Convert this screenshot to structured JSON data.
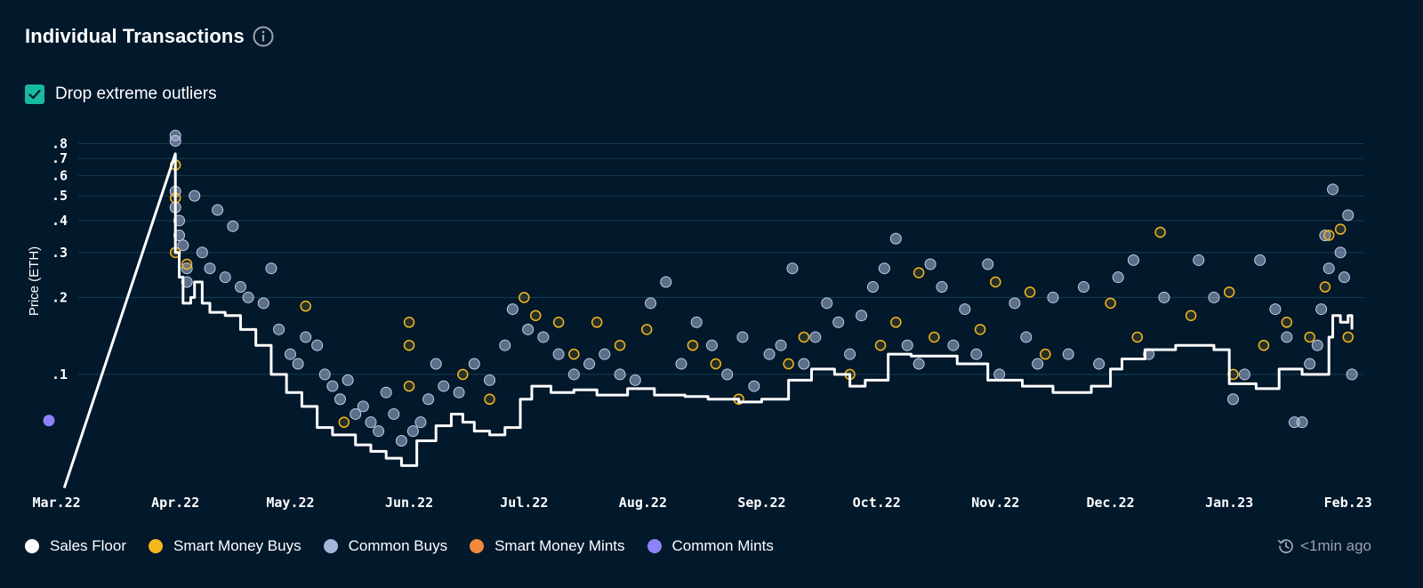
{
  "header": {
    "title": "Individual Transactions",
    "info_icon": "info-circle-icon"
  },
  "filter": {
    "label": "Drop extreme outliers",
    "checked": true
  },
  "status": {
    "refresh_icon": "refresh-clock-icon",
    "text": "<1min ago"
  },
  "colors": {
    "background": "#02182b",
    "grid": "#183c52",
    "sales_floor": "#ffffff",
    "smart_money_buys": "#f4b71e",
    "common_buys": "#a7b6d8",
    "smart_money_mints": "#f28a3d",
    "common_mints": "#8d82f7",
    "checkbox": "#17b9a1"
  },
  "legend": [
    {
      "key": "sales_floor",
      "label": "Sales Floor"
    },
    {
      "key": "smart_money_buys",
      "label": "Smart Money Buys"
    },
    {
      "key": "common_buys",
      "label": "Common Buys"
    },
    {
      "key": "smart_money_mints",
      "label": "Smart Money Mints"
    },
    {
      "key": "common_mints",
      "label": "Common Mints"
    }
  ],
  "chart_data": {
    "type": "scatter",
    "ylabel": "Price (ETH)",
    "y_scale": "log",
    "ylim": [
      0.037,
      0.95
    ],
    "yticks": [
      {
        "value": 0.1,
        "label": ".1"
      },
      {
        "value": 0.2,
        "label": ".2"
      },
      {
        "value": 0.3,
        "label": ".3"
      },
      {
        "value": 0.4,
        "label": ".4"
      },
      {
        "value": 0.5,
        "label": ".5"
      },
      {
        "value": 0.6,
        "label": ".6"
      },
      {
        "value": 0.7,
        "label": ".7"
      },
      {
        "value": 0.8,
        "label": ".8"
      }
    ],
    "xlim": [
      "2022-02-27",
      "2023-02-05"
    ],
    "xticks": [
      {
        "value": "2022-03-01",
        "label": "Mar.22"
      },
      {
        "value": "2022-04-01",
        "label": "Apr.22"
      },
      {
        "value": "2022-05-01",
        "label": "May.22"
      },
      {
        "value": "2022-06-01",
        "label": "Jun.22"
      },
      {
        "value": "2022-07-01",
        "label": "Jul.22"
      },
      {
        "value": "2022-08-01",
        "label": "Aug.22"
      },
      {
        "value": "2022-09-01",
        "label": "Sep.22"
      },
      {
        "value": "2022-10-01",
        "label": "Oct.22"
      },
      {
        "value": "2022-11-01",
        "label": "Nov.22"
      },
      {
        "value": "2022-12-01",
        "label": "Dec.22"
      },
      {
        "value": "2023-01-01",
        "label": "Jan.23"
      },
      {
        "value": "2023-02-01",
        "label": "Feb.23"
      }
    ],
    "grid": true,
    "legend_position": "bottom-left",
    "series": [
      {
        "name": "Sales Floor",
        "key": "sales_floor",
        "kind": "step-line",
        "points": [
          [
            "2022-03-03",
            0.036
          ],
          [
            "2022-04-01",
            0.73
          ],
          [
            "2022-04-01",
            0.3
          ],
          [
            "2022-04-02",
            0.24
          ],
          [
            "2022-04-03",
            0.19
          ],
          [
            "2022-04-05",
            0.2
          ],
          [
            "2022-04-06",
            0.23
          ],
          [
            "2022-04-08",
            0.19
          ],
          [
            "2022-04-10",
            0.175
          ],
          [
            "2022-04-14",
            0.17
          ],
          [
            "2022-04-18",
            0.15
          ],
          [
            "2022-04-22",
            0.13
          ],
          [
            "2022-04-26",
            0.1
          ],
          [
            "2022-04-30",
            0.085
          ],
          [
            "2022-05-04",
            0.075
          ],
          [
            "2022-05-08",
            0.062
          ],
          [
            "2022-05-12",
            0.058
          ],
          [
            "2022-05-18",
            0.053
          ],
          [
            "2022-05-22",
            0.05
          ],
          [
            "2022-05-26",
            0.047
          ],
          [
            "2022-05-30",
            0.044
          ],
          [
            "2022-06-03",
            0.055
          ],
          [
            "2022-06-08",
            0.063
          ],
          [
            "2022-06-12",
            0.07
          ],
          [
            "2022-06-15",
            0.065
          ],
          [
            "2022-06-18",
            0.06
          ],
          [
            "2022-06-22",
            0.058
          ],
          [
            "2022-06-26",
            0.062
          ],
          [
            "2022-06-30",
            0.08
          ],
          [
            "2022-07-03",
            0.09
          ],
          [
            "2022-07-08",
            0.085
          ],
          [
            "2022-07-14",
            0.087
          ],
          [
            "2022-07-20",
            0.083
          ],
          [
            "2022-07-28",
            0.088
          ],
          [
            "2022-08-04",
            0.083
          ],
          [
            "2022-08-12",
            0.082
          ],
          [
            "2022-08-18",
            0.08
          ],
          [
            "2022-08-26",
            0.078
          ],
          [
            "2022-09-01",
            0.08
          ],
          [
            "2022-09-08",
            0.095
          ],
          [
            "2022-09-14",
            0.105
          ],
          [
            "2022-09-20",
            0.1
          ],
          [
            "2022-09-24",
            0.09
          ],
          [
            "2022-09-28",
            0.095
          ],
          [
            "2022-10-04",
            0.12
          ],
          [
            "2022-10-10",
            0.118
          ],
          [
            "2022-10-22",
            0.11
          ],
          [
            "2022-10-30",
            0.095
          ],
          [
            "2022-11-08",
            0.09
          ],
          [
            "2022-11-16",
            0.085
          ],
          [
            "2022-11-26",
            0.09
          ],
          [
            "2022-12-01",
            0.105
          ],
          [
            "2022-12-04",
            0.115
          ],
          [
            "2022-12-10",
            0.125
          ],
          [
            "2022-12-18",
            0.13
          ],
          [
            "2022-12-28",
            0.125
          ],
          [
            "2023-01-01",
            0.092
          ],
          [
            "2023-01-08",
            0.088
          ],
          [
            "2023-01-14",
            0.105
          ],
          [
            "2023-01-20",
            0.1
          ],
          [
            "2023-01-24",
            0.1
          ],
          [
            "2023-01-27",
            0.14
          ],
          [
            "2023-01-28",
            0.17
          ],
          [
            "2023-01-30",
            0.16
          ],
          [
            "2023-02-01",
            0.17
          ],
          [
            "2023-02-02",
            0.15
          ]
        ]
      },
      {
        "name": "Smart Money Buys",
        "key": "smart_money_buys",
        "kind": "points",
        "points": [
          [
            "2022-04-01",
            0.66
          ],
          [
            "2022-04-01",
            0.49
          ],
          [
            "2022-04-01",
            0.3
          ],
          [
            "2022-04-04",
            0.27
          ],
          [
            "2022-05-05",
            0.185
          ],
          [
            "2022-05-15",
            0.065
          ],
          [
            "2022-06-01",
            0.16
          ],
          [
            "2022-06-01",
            0.13
          ],
          [
            "2022-06-01",
            0.09
          ],
          [
            "2022-06-15",
            0.1
          ],
          [
            "2022-06-22",
            0.08
          ],
          [
            "2022-07-01",
            0.2
          ],
          [
            "2022-07-04",
            0.17
          ],
          [
            "2022-07-10",
            0.16
          ],
          [
            "2022-07-14",
            0.12
          ],
          [
            "2022-07-20",
            0.16
          ],
          [
            "2022-07-26",
            0.13
          ],
          [
            "2022-08-02",
            0.15
          ],
          [
            "2022-08-14",
            0.13
          ],
          [
            "2022-08-20",
            0.11
          ],
          [
            "2022-08-26",
            0.08
          ],
          [
            "2022-09-08",
            0.11
          ],
          [
            "2022-09-12",
            0.14
          ],
          [
            "2022-09-24",
            0.1
          ],
          [
            "2022-10-02",
            0.13
          ],
          [
            "2022-10-06",
            0.16
          ],
          [
            "2022-10-12",
            0.25
          ],
          [
            "2022-10-16",
            0.14
          ],
          [
            "2022-10-28",
            0.15
          ],
          [
            "2022-11-01",
            0.23
          ],
          [
            "2022-11-10",
            0.21
          ],
          [
            "2022-11-14",
            0.12
          ],
          [
            "2022-12-01",
            0.19
          ],
          [
            "2022-12-08",
            0.14
          ],
          [
            "2022-12-14",
            0.36
          ],
          [
            "2022-12-22",
            0.17
          ],
          [
            "2023-01-01",
            0.21
          ],
          [
            "2023-01-02",
            0.1
          ],
          [
            "2023-01-10",
            0.13
          ],
          [
            "2023-01-16",
            0.16
          ],
          [
            "2023-01-22",
            0.14
          ],
          [
            "2023-01-26",
            0.22
          ],
          [
            "2023-01-27",
            0.35
          ],
          [
            "2023-01-30",
            0.37
          ],
          [
            "2023-02-01",
            0.14
          ]
        ]
      },
      {
        "name": "Common Buys",
        "key": "common_buys",
        "kind": "points",
        "points": [
          [
            "2022-04-01",
            0.86
          ],
          [
            "2022-04-01",
            0.82
          ],
          [
            "2022-04-01",
            0.52
          ],
          [
            "2022-04-01",
            0.45
          ],
          [
            "2022-04-02",
            0.4
          ],
          [
            "2022-04-02",
            0.35
          ],
          [
            "2022-04-03",
            0.32
          ],
          [
            "2022-04-04",
            0.26
          ],
          [
            "2022-04-04",
            0.23
          ],
          [
            "2022-04-06",
            0.5
          ],
          [
            "2022-04-08",
            0.3
          ],
          [
            "2022-04-10",
            0.26
          ],
          [
            "2022-04-12",
            0.44
          ],
          [
            "2022-04-14",
            0.24
          ],
          [
            "2022-04-16",
            0.38
          ],
          [
            "2022-04-18",
            0.22
          ],
          [
            "2022-04-20",
            0.2
          ],
          [
            "2022-04-24",
            0.19
          ],
          [
            "2022-04-26",
            0.26
          ],
          [
            "2022-04-28",
            0.15
          ],
          [
            "2022-05-01",
            0.12
          ],
          [
            "2022-05-03",
            0.11
          ],
          [
            "2022-05-05",
            0.14
          ],
          [
            "2022-05-08",
            0.13
          ],
          [
            "2022-05-10",
            0.1
          ],
          [
            "2022-05-12",
            0.09
          ],
          [
            "2022-05-14",
            0.08
          ],
          [
            "2022-05-16",
            0.095
          ],
          [
            "2022-05-18",
            0.07
          ],
          [
            "2022-05-20",
            0.075
          ],
          [
            "2022-05-22",
            0.065
          ],
          [
            "2022-05-24",
            0.06
          ],
          [
            "2022-05-26",
            0.085
          ],
          [
            "2022-05-28",
            0.07
          ],
          [
            "2022-05-30",
            0.055
          ],
          [
            "2022-06-02",
            0.06
          ],
          [
            "2022-06-04",
            0.065
          ],
          [
            "2022-06-06",
            0.08
          ],
          [
            "2022-06-08",
            0.11
          ],
          [
            "2022-06-10",
            0.09
          ],
          [
            "2022-06-14",
            0.085
          ],
          [
            "2022-06-18",
            0.11
          ],
          [
            "2022-06-22",
            0.095
          ],
          [
            "2022-06-26",
            0.13
          ],
          [
            "2022-06-28",
            0.18
          ],
          [
            "2022-07-02",
            0.15
          ],
          [
            "2022-07-06",
            0.14
          ],
          [
            "2022-07-10",
            0.12
          ],
          [
            "2022-07-14",
            0.1
          ],
          [
            "2022-07-18",
            0.11
          ],
          [
            "2022-07-22",
            0.12
          ],
          [
            "2022-07-26",
            0.1
          ],
          [
            "2022-07-30",
            0.095
          ],
          [
            "2022-08-03",
            0.19
          ],
          [
            "2022-08-07",
            0.23
          ],
          [
            "2022-08-11",
            0.11
          ],
          [
            "2022-08-15",
            0.16
          ],
          [
            "2022-08-19",
            0.13
          ],
          [
            "2022-08-23",
            0.1
          ],
          [
            "2022-08-27",
            0.14
          ],
          [
            "2022-08-30",
            0.09
          ],
          [
            "2022-09-03",
            0.12
          ],
          [
            "2022-09-06",
            0.13
          ],
          [
            "2022-09-09",
            0.26
          ],
          [
            "2022-09-12",
            0.11
          ],
          [
            "2022-09-15",
            0.14
          ],
          [
            "2022-09-18",
            0.19
          ],
          [
            "2022-09-21",
            0.16
          ],
          [
            "2022-09-24",
            0.12
          ],
          [
            "2022-09-27",
            0.17
          ],
          [
            "2022-09-30",
            0.22
          ],
          [
            "2022-10-03",
            0.26
          ],
          [
            "2022-10-06",
            0.34
          ],
          [
            "2022-10-09",
            0.13
          ],
          [
            "2022-10-12",
            0.11
          ],
          [
            "2022-10-15",
            0.27
          ],
          [
            "2022-10-18",
            0.22
          ],
          [
            "2022-10-21",
            0.13
          ],
          [
            "2022-10-24",
            0.18
          ],
          [
            "2022-10-27",
            0.12
          ],
          [
            "2022-10-30",
            0.27
          ],
          [
            "2022-11-02",
            0.1
          ],
          [
            "2022-11-06",
            0.19
          ],
          [
            "2022-11-09",
            0.14
          ],
          [
            "2022-11-12",
            0.11
          ],
          [
            "2022-11-16",
            0.2
          ],
          [
            "2022-11-20",
            0.12
          ],
          [
            "2022-11-24",
            0.22
          ],
          [
            "2022-11-28",
            0.11
          ],
          [
            "2022-12-03",
            0.24
          ],
          [
            "2022-12-07",
            0.28
          ],
          [
            "2022-12-11",
            0.12
          ],
          [
            "2022-12-15",
            0.2
          ],
          [
            "2022-12-24",
            0.28
          ],
          [
            "2022-12-28",
            0.2
          ],
          [
            "2023-01-02",
            0.08
          ],
          [
            "2023-01-05",
            0.1
          ],
          [
            "2023-01-09",
            0.28
          ],
          [
            "2023-01-13",
            0.18
          ],
          [
            "2023-01-16",
            0.14
          ],
          [
            "2023-01-18",
            0.065
          ],
          [
            "2023-01-20",
            0.065
          ],
          [
            "2023-01-22",
            0.11
          ],
          [
            "2023-01-24",
            0.13
          ],
          [
            "2023-01-25",
            0.18
          ],
          [
            "2023-01-26",
            0.35
          ],
          [
            "2023-01-27",
            0.26
          ],
          [
            "2023-01-28",
            0.53
          ],
          [
            "2023-01-30",
            0.3
          ],
          [
            "2023-01-31",
            0.24
          ],
          [
            "2023-02-01",
            0.42
          ],
          [
            "2023-02-02",
            0.1
          ]
        ]
      },
      {
        "name": "Smart Money Mints",
        "key": "smart_money_mints",
        "kind": "points",
        "points": []
      },
      {
        "name": "Common Mints",
        "key": "common_mints",
        "kind": "points",
        "points": [
          [
            "2022-02-27",
            0.066
          ]
        ]
      }
    ]
  }
}
